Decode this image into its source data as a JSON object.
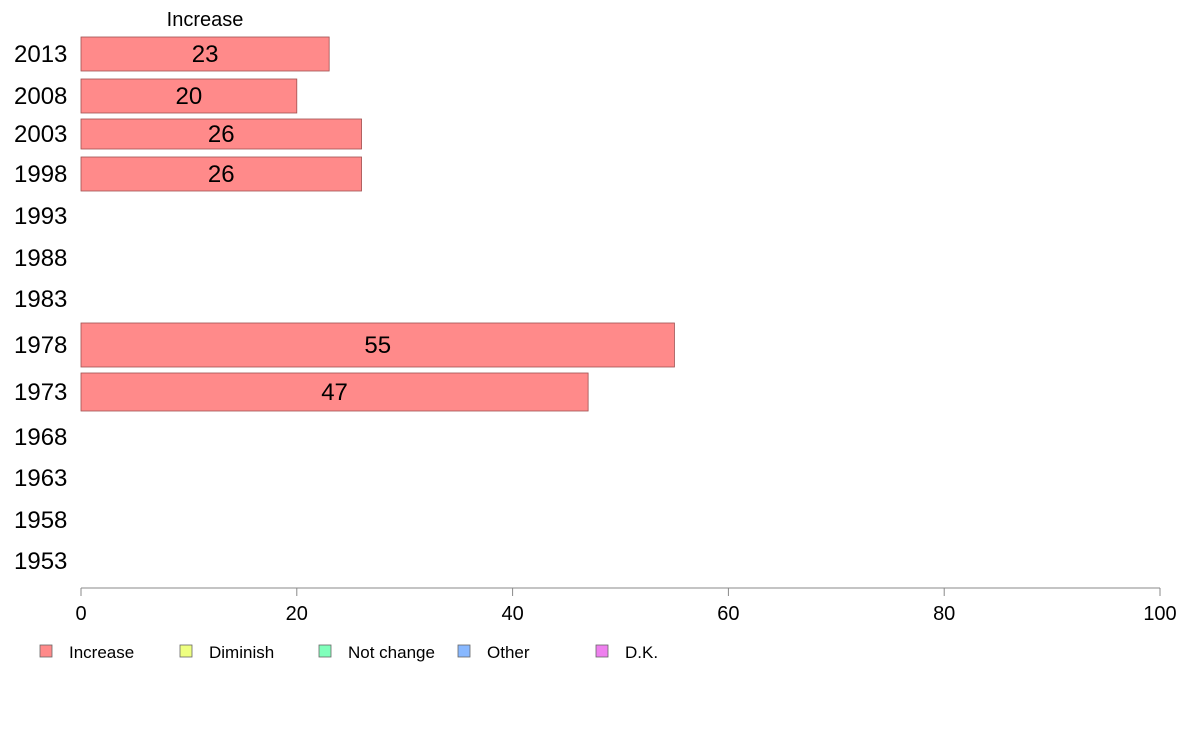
{
  "chart_data": {
    "type": "bar",
    "orientation": "horizontal",
    "stacked": true,
    "categories": [
      "2013",
      "2008",
      "2003",
      "1998",
      "1993",
      "1988",
      "1983",
      "1978",
      "1973",
      "1968",
      "1963",
      "1958",
      "1953"
    ],
    "series": [
      {
        "name": "Increase",
        "color": "#ff8a8a",
        "values": [
          23,
          20,
          26,
          26,
          null,
          null,
          null,
          55,
          47,
          null,
          null,
          null,
          null
        ]
      },
      {
        "name": "Diminish",
        "color": "#eeff80",
        "values": [
          null,
          null,
          null,
          null,
          null,
          null,
          null,
          null,
          null,
          null,
          null,
          null,
          null
        ]
      },
      {
        "name": "Not change",
        "color": "#80ffbb",
        "values": [
          null,
          null,
          null,
          null,
          null,
          null,
          null,
          null,
          null,
          null,
          null,
          null,
          null
        ]
      },
      {
        "name": "Other",
        "color": "#88b8ff",
        "values": [
          null,
          null,
          null,
          null,
          null,
          null,
          null,
          null,
          null,
          null,
          null,
          null,
          null
        ]
      },
      {
        "name": "D.K.",
        "color": "#ee80ee",
        "values": [
          null,
          null,
          null,
          null,
          null,
          null,
          null,
          null,
          null,
          null,
          null,
          null,
          null
        ]
      }
    ],
    "column_header": "Increase",
    "xlim": [
      0,
      100
    ],
    "xticks": [
      0,
      20,
      40,
      60,
      80,
      100
    ],
    "grid": false,
    "legend_position": "bottom-left"
  }
}
